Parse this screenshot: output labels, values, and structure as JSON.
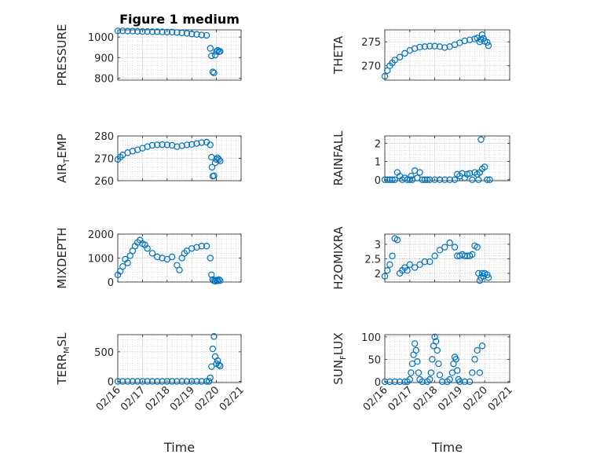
{
  "figure": {
    "title": "Figure 1 medium"
  },
  "colors": {
    "marker": "#0072BD",
    "axis": "#262626",
    "grid": "#dcdcdc",
    "minor_grid": "#c8c8c8"
  },
  "chart_data": [
    {
      "id": "pressure",
      "type": "scatter",
      "title": "Figure 1 medium",
      "ylabel": "PRESSURE",
      "ylabel_main": "PRESSURE",
      "ylabel_sub": "",
      "ylabel_tail": "",
      "xlabel": "",
      "xlim": [
        0,
        5
      ],
      "ylim": [
        790,
        1035
      ],
      "yticks": [
        800,
        900,
        1000
      ],
      "ytick_labels": [
        "800",
        "900",
        "1000"
      ],
      "xticks": [
        0,
        1,
        2,
        3,
        4,
        5
      ],
      "xtick_labels": [],
      "x": [
        0.0,
        0.2,
        0.4,
        0.6,
        0.8,
        1.0,
        1.2,
        1.4,
        1.6,
        1.8,
        2.0,
        2.2,
        2.4,
        2.6,
        2.8,
        3.0,
        3.2,
        3.4,
        3.6,
        3.75,
        3.8,
        3.85,
        3.9,
        3.95,
        4.0,
        4.05,
        4.1,
        4.15
      ],
      "y": [
        1030,
        1030,
        1029,
        1029,
        1028,
        1027,
        1027,
        1026,
        1026,
        1025,
        1024,
        1024,
        1022,
        1020,
        1018,
        1015,
        1013,
        1010,
        1008,
        945,
        908,
        830,
        825,
        912,
        930,
        935,
        928,
        930
      ],
      "grid": true
    },
    {
      "id": "theta",
      "type": "scatter",
      "ylabel": "THETA",
      "ylabel_main": "THETA",
      "ylabel_sub": "",
      "ylabel_tail": "",
      "xlabel": "",
      "xlim": [
        0,
        5
      ],
      "ylim": [
        267,
        277.5
      ],
      "yticks": [
        270,
        275
      ],
      "ytick_labels": [
        "270",
        "275"
      ],
      "xticks": [
        0,
        1,
        2,
        3,
        4,
        5
      ],
      "xtick_labels": [],
      "x": [
        0.0,
        0.1,
        0.2,
        0.3,
        0.4,
        0.6,
        0.8,
        1.0,
        1.2,
        1.4,
        1.6,
        1.8,
        2.0,
        2.2,
        2.4,
        2.6,
        2.8,
        3.0,
        3.2,
        3.4,
        3.6,
        3.7,
        3.8,
        3.85,
        3.9,
        3.95,
        4.0,
        4.1,
        4.15
      ],
      "y": [
        267.8,
        269.0,
        270.0,
        270.6,
        271.2,
        271.8,
        272.6,
        273.2,
        273.6,
        273.9,
        274.0,
        274.1,
        274.1,
        274.0,
        273.8,
        274.0,
        274.4,
        274.8,
        275.2,
        275.4,
        275.6,
        275.8,
        275.0,
        275.5,
        276.5,
        275.7,
        275.1,
        274.9,
        274.2
      ],
      "grid": true
    },
    {
      "id": "air_temp",
      "type": "scatter",
      "ylabel": "AIR_TEMP",
      "ylabel_main": "AIR",
      "ylabel_sub": "T",
      "ylabel_tail": "EMP",
      "xlabel": "",
      "xlim": [
        0,
        5
      ],
      "ylim": [
        260,
        280
      ],
      "yticks": [
        260,
        270,
        280
      ],
      "ytick_labels": [
        "260",
        "270",
        "280"
      ],
      "xticks": [
        0,
        1,
        2,
        3,
        4,
        5
      ],
      "xtick_labels": [],
      "x": [
        0.0,
        0.1,
        0.2,
        0.4,
        0.6,
        0.8,
        1.0,
        1.2,
        1.4,
        1.6,
        1.8,
        2.0,
        2.2,
        2.4,
        2.6,
        2.8,
        3.0,
        3.2,
        3.4,
        3.6,
        3.75,
        3.8,
        3.82,
        3.85,
        3.9,
        3.95,
        4.0,
        4.05,
        4.1,
        4.15
      ],
      "y": [
        269.5,
        270.5,
        271.5,
        272.5,
        273.2,
        273.8,
        274.5,
        275.2,
        275.8,
        276.0,
        276.1,
        276.0,
        275.8,
        275.2,
        275.6,
        276.0,
        276.2,
        276.6,
        277.0,
        277.2,
        276.0,
        270.5,
        266.0,
        262.0,
        262.2,
        268.0,
        269.5,
        270.2,
        269.5,
        268.8
      ],
      "grid": true
    },
    {
      "id": "rainfall",
      "type": "scatter",
      "ylabel": "RAINFALL",
      "ylabel_main": "RAINFALL",
      "ylabel_sub": "",
      "ylabel_tail": "",
      "xlabel": "",
      "xlim": [
        0,
        5
      ],
      "ylim": [
        -0.05,
        2.4
      ],
      "yticks": [
        0,
        1,
        2
      ],
      "ytick_labels": [
        "0",
        "1",
        "2"
      ],
      "xticks": [
        0,
        1,
        2,
        3,
        4,
        5
      ],
      "xtick_labels": [],
      "x": [
        0.0,
        0.1,
        0.2,
        0.3,
        0.4,
        0.5,
        0.6,
        0.7,
        0.8,
        0.9,
        1.0,
        1.05,
        1.1,
        1.2,
        1.3,
        1.4,
        1.5,
        1.6,
        1.7,
        1.8,
        2.0,
        2.2,
        2.4,
        2.6,
        2.8,
        2.9,
        3.0,
        3.1,
        3.2,
        3.3,
        3.4,
        3.5,
        3.6,
        3.7,
        3.75,
        3.8,
        3.85,
        3.9,
        4.0,
        4.1,
        4.2
      ],
      "y": [
        0,
        0,
        0,
        0,
        0,
        0.4,
        0.2,
        0,
        0.1,
        0,
        0,
        0.2,
        0,
        0.5,
        0.1,
        0.4,
        0,
        0,
        0,
        0,
        0,
        0,
        0,
        0,
        0,
        0.3,
        0.2,
        0.35,
        0.1,
        0.3,
        0.35,
        0,
        0.4,
        0.3,
        0,
        0.4,
        2.2,
        0.6,
        0.7,
        0,
        0
      ],
      "grid": true
    },
    {
      "id": "mixdepth",
      "type": "scatter",
      "ylabel": "MIXDEPTH",
      "ylabel_main": "MIXDEPTH",
      "ylabel_sub": "",
      "ylabel_tail": "",
      "xlabel": "",
      "xlim": [
        0,
        5
      ],
      "ylim": [
        0,
        2000
      ],
      "yticks": [
        0,
        1000,
        2000
      ],
      "ytick_labels": [
        "0",
        "1000",
        "2000"
      ],
      "xticks": [
        0,
        1,
        2,
        3,
        4,
        5
      ],
      "xtick_labels": [],
      "x": [
        0.0,
        0.1,
        0.2,
        0.3,
        0.4,
        0.5,
        0.6,
        0.7,
        0.8,
        0.9,
        1.0,
        1.1,
        1.2,
        1.4,
        1.6,
        1.8,
        2.0,
        2.2,
        2.4,
        2.5,
        2.6,
        2.7,
        2.8,
        3.0,
        3.2,
        3.4,
        3.6,
        3.75,
        3.8,
        3.85,
        3.9,
        3.95,
        4.0,
        4.05,
        4.1,
        4.15
      ],
      "y": [
        300,
        450,
        650,
        950,
        800,
        1100,
        1300,
        1500,
        1650,
        1750,
        1600,
        1550,
        1400,
        1200,
        1050,
        1000,
        950,
        1050,
        700,
        500,
        1000,
        1200,
        1300,
        1400,
        1450,
        1500,
        1500,
        1000,
        300,
        100,
        50,
        30,
        80,
        50,
        100,
        60
      ],
      "grid": true
    },
    {
      "id": "h2omixra",
      "type": "scatter",
      "ylabel": "H2OMIXRA",
      "ylabel_main": "H2OMIXRA",
      "ylabel_sub": "",
      "ylabel_tail": "",
      "xlabel": "",
      "xlim": [
        0,
        5
      ],
      "ylim": [
        1.7,
        3.35
      ],
      "yticks": [
        2,
        2.5,
        3
      ],
      "ytick_labels": [
        "2",
        "2.5",
        "3"
      ],
      "xticks": [
        0,
        1,
        2,
        3,
        4,
        5
      ],
      "xtick_labels": [],
      "x": [
        0.0,
        0.1,
        0.2,
        0.3,
        0.4,
        0.5,
        0.6,
        0.7,
        0.8,
        0.9,
        1.0,
        1.2,
        1.4,
        1.6,
        1.8,
        2.0,
        2.2,
        2.4,
        2.6,
        2.8,
        2.9,
        3.0,
        3.1,
        3.2,
        3.3,
        3.4,
        3.5,
        3.6,
        3.7,
        3.75,
        3.8,
        3.85,
        3.9,
        3.95,
        4.0,
        4.1,
        4.15
      ],
      "y": [
        1.9,
        2.1,
        2.3,
        2.6,
        3.2,
        3.15,
        2.0,
        2.1,
        2.2,
        2.1,
        2.3,
        2.2,
        2.3,
        2.4,
        2.4,
        2.6,
        2.8,
        2.9,
        3.05,
        2.9,
        2.6,
        2.6,
        2.65,
        2.6,
        2.6,
        2.6,
        2.65,
        2.95,
        2.9,
        2.0,
        1.75,
        1.85,
        2.0,
        1.9,
        2.0,
        1.95,
        1.85
      ],
      "grid": true
    },
    {
      "id": "terr_msl",
      "type": "scatter",
      "ylabel": "TERR_MSL",
      "ylabel_main": "TERR",
      "ylabel_sub": "M",
      "ylabel_tail": "SL",
      "xlabel": "Time",
      "xlim": [
        0,
        5
      ],
      "ylim": [
        -20,
        790
      ],
      "yticks": [
        0,
        500
      ],
      "ytick_labels": [
        "0",
        "500"
      ],
      "xticks": [
        0,
        1,
        2,
        3,
        4,
        5
      ],
      "xtick_labels": [
        "02/16",
        "02/17",
        "02/18",
        "02/19",
        "02/20",
        "02/21"
      ],
      "x": [
        0.0,
        0.2,
        0.4,
        0.6,
        0.8,
        1.0,
        1.2,
        1.4,
        1.6,
        1.8,
        2.0,
        2.2,
        2.4,
        2.6,
        2.8,
        3.0,
        3.2,
        3.4,
        3.6,
        3.7,
        3.75,
        3.8,
        3.85,
        3.9,
        3.95,
        4.0,
        4.05,
        4.1,
        4.15
      ],
      "y": [
        0,
        0,
        0,
        0,
        0,
        0,
        0,
        0,
        0,
        0,
        0,
        0,
        0,
        0,
        0,
        0,
        0,
        0,
        0,
        0,
        60,
        250,
        550,
        760,
        420,
        300,
        350,
        280,
        260
      ],
      "grid": true
    },
    {
      "id": "sun_flux",
      "type": "scatter",
      "ylabel": "SUN_FLUX",
      "ylabel_main": "SUN",
      "ylabel_sub": "F",
      "ylabel_tail": "LUX",
      "xlabel": "Time",
      "xlim": [
        0,
        5
      ],
      "ylim": [
        -2,
        105
      ],
      "yticks": [
        0,
        50,
        100
      ],
      "ytick_labels": [
        "0",
        "50",
        "100"
      ],
      "xticks": [
        0,
        1,
        2,
        3,
        4,
        5
      ],
      "xtick_labels": [
        "02/16",
        "02/17",
        "02/18",
        "02/19",
        "02/20",
        "02/21"
      ],
      "x": [
        0.0,
        0.2,
        0.4,
        0.6,
        0.8,
        0.9,
        1.0,
        1.05,
        1.1,
        1.15,
        1.2,
        1.25,
        1.3,
        1.35,
        1.4,
        1.5,
        1.7,
        1.8,
        1.85,
        1.9,
        1.95,
        2.0,
        2.05,
        2.1,
        2.15,
        2.2,
        2.3,
        2.5,
        2.6,
        2.7,
        2.75,
        2.8,
        2.85,
        2.9,
        2.95,
        3.0,
        3.2,
        3.4,
        3.5,
        3.6,
        3.7,
        3.8,
        3.9
      ],
      "y": [
        0,
        0,
        0,
        0,
        0,
        0,
        5,
        20,
        40,
        60,
        85,
        70,
        45,
        20,
        5,
        0,
        0,
        5,
        20,
        50,
        80,
        100,
        90,
        70,
        40,
        15,
        0,
        0,
        5,
        20,
        40,
        55,
        50,
        25,
        5,
        0,
        0,
        0,
        20,
        50,
        70,
        20,
        80
      ],
      "grid": true
    }
  ]
}
